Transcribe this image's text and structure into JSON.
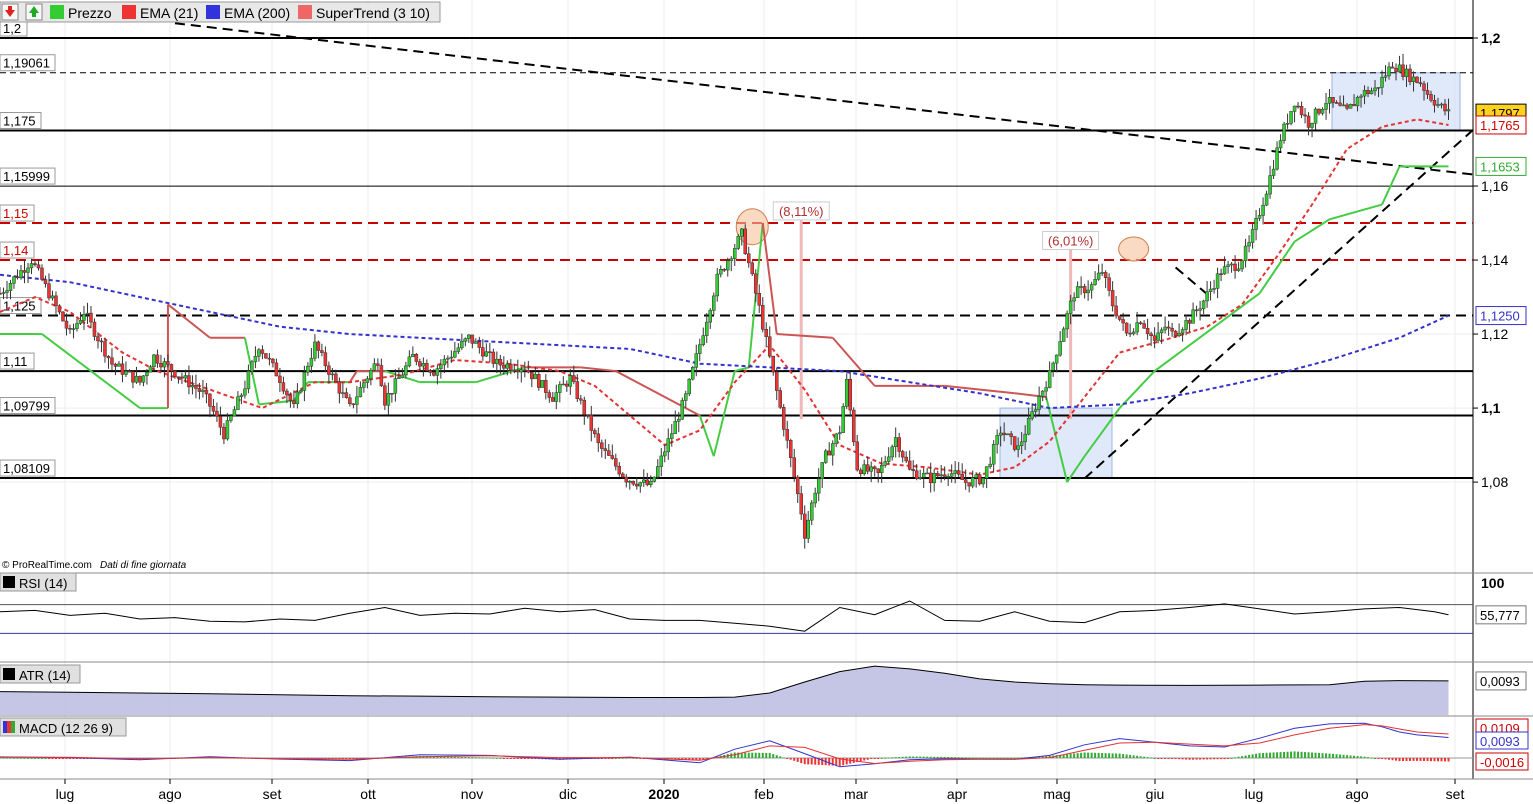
{
  "toolbar": {
    "buttons": [
      {
        "icon": "arrow-down-icon",
        "color": "#d22"
      },
      {
        "icon": "arrow-up-icon",
        "color": "#2a2"
      }
    ],
    "legend": [
      {
        "label": "Prezzo",
        "color": "#3c3"
      },
      {
        "label": "EMA (21)",
        "color": "#e33"
      },
      {
        "label": "EMA (200)",
        "color": "#33d"
      },
      {
        "label": "SuperTrend (3 10)",
        "color": "#e66"
      }
    ]
  },
  "credit": {
    "source": "© ProRealTime.com",
    "note": "Dati di fine giornata"
  },
  "chart_data": [
    {
      "type": "candlestick",
      "title": "",
      "ylim": [
        1.063,
        1.2
      ],
      "x_ticks": [
        "lug",
        "ago",
        "set",
        "ott",
        "nov",
        "dic",
        "2020",
        "feb",
        "mar",
        "apr",
        "mag",
        "giu",
        "lug",
        "ago",
        "set"
      ],
      "y_ticks": [
        {
          "label": "1,2",
          "value": 1.2,
          "bold": true
        },
        {
          "label": "1,16",
          "value": 1.16,
          "bold": false
        },
        {
          "label": "1,14",
          "value": 1.14,
          "bold": false
        },
        {
          "label": "1,12",
          "value": 1.12,
          "bold": false
        },
        {
          "label": "1,1",
          "value": 1.1,
          "bold": true
        },
        {
          "label": "1,08",
          "value": 1.08,
          "bold": false
        }
      ],
      "levels": [
        {
          "label": "1,2",
          "value": 1.2,
          "style": "solid",
          "color": "#000000"
        },
        {
          "label": "1,19061",
          "value": 1.19061,
          "style": "dashed-thin",
          "color": "#000000"
        },
        {
          "label": "1,175",
          "value": 1.175,
          "style": "solid",
          "color": "#000000"
        },
        {
          "label": "1,15999",
          "value": 1.15999,
          "style": "solid-thin",
          "color": "#000000"
        },
        {
          "label": "1,15",
          "value": 1.15,
          "style": "dashed",
          "color": "#cc0000"
        },
        {
          "label": "1,14",
          "value": 1.14,
          "style": "dashed",
          "color": "#cc0000"
        },
        {
          "label": "1,125",
          "value": 1.125,
          "style": "dashed",
          "color": "#000000"
        },
        {
          "label": "1,11",
          "value": 1.11,
          "style": "solid",
          "color": "#000000"
        },
        {
          "label": "1,09799",
          "value": 1.09799,
          "style": "solid",
          "color": "#000000"
        },
        {
          "label": "1,08109",
          "value": 1.08109,
          "style": "solid",
          "color": "#000000"
        }
      ],
      "last_values": [
        {
          "label": "1,1797",
          "value": 1.1797,
          "bg": "#ffd21f",
          "fg": "#000000"
        },
        {
          "label": "1,1765",
          "value": 1.1765,
          "bg": "#ffffff",
          "fg": "#cc0000"
        },
        {
          "label": "1,1653",
          "value": 1.1653,
          "bg": "#ffffff",
          "fg": "#33aa33"
        },
        {
          "label": "1,1250",
          "value": 1.125,
          "bg": "#ffffff",
          "fg": "#3333cc"
        }
      ],
      "annotations": [
        {
          "text": "(8,11%)",
          "x": 229,
          "y": 1.153
        },
        {
          "text": "(6,01%)",
          "x": 306,
          "y": 1.145
        }
      ],
      "series": [
        {
          "name": "Prezzo",
          "kind": "close",
          "x": [
            0,
            9,
            14,
            20,
            24,
            32,
            40,
            44,
            58,
            61,
            64,
            70,
            74,
            80,
            84,
            88,
            90,
            100,
            104,
            108,
            110,
            118,
            124,
            134,
            142,
            150,
            158,
            163,
            171,
            179,
            186,
            196,
            205,
            212,
            217,
            223,
            229,
            230,
            233,
            236,
            240,
            242,
            245,
            251,
            256,
            260,
            266,
            271,
            276,
            281,
            286,
            291,
            294,
            297,
            300,
            304,
            307,
            312,
            315,
            318,
            322,
            326,
            330,
            333,
            335,
            340,
            344,
            349,
            354,
            357,
            362,
            366,
            370,
            374,
            379,
            385,
            389,
            393,
            398,
            404,
            406,
            408,
            411,
            414
          ],
          "y": [
            1.131,
            1.14,
            1.131,
            1.12,
            1.126,
            1.112,
            1.107,
            1.114,
            1.104,
            1.099,
            1.093,
            1.106,
            1.117,
            1.108,
            1.1,
            1.112,
            1.117,
            1.1,
            1.107,
            1.113,
            1.102,
            1.114,
            1.11,
            1.119,
            1.112,
            1.111,
            1.103,
            1.108,
            1.09,
            1.081,
            1.079,
            1.103,
            1.135,
            1.147,
            1.127,
            1.1,
            1.072,
            1.066,
            1.078,
            1.087,
            1.094,
            1.107,
            1.084,
            1.082,
            1.092,
            1.083,
            1.081,
            1.083,
            1.08,
            1.081,
            1.094,
            1.089,
            1.096,
            1.103,
            1.109,
            1.122,
            1.131,
            1.133,
            1.137,
            1.128,
            1.12,
            1.124,
            1.118,
            1.122,
            1.12,
            1.124,
            1.129,
            1.137,
            1.139,
            1.144,
            1.159,
            1.173,
            1.183,
            1.177,
            1.183,
            1.18,
            1.185,
            1.186,
            1.193,
            1.189,
            1.188,
            1.185,
            1.182,
            1.1797
          ]
        },
        {
          "name": "EMA (21)",
          "kind": "line",
          "color": "#e33333",
          "style": "dashed",
          "x": [
            0,
            10,
            20,
            35,
            45,
            60,
            75,
            90,
            100,
            115,
            130,
            145,
            160,
            170,
            180,
            190,
            200,
            210,
            220,
            230,
            240,
            252,
            265,
            280,
            290,
            300,
            310,
            320,
            335,
            345,
            355,
            365,
            375,
            385,
            395,
            405,
            414
          ],
          "y": [
            1.126,
            1.13,
            1.126,
            1.115,
            1.11,
            1.105,
            1.1,
            1.107,
            1.107,
            1.109,
            1.113,
            1.112,
            1.11,
            1.106,
            1.098,
            1.09,
            1.094,
            1.107,
            1.117,
            1.105,
            1.09,
            1.085,
            1.084,
            1.082,
            1.084,
            1.091,
            1.103,
            1.115,
            1.119,
            1.122,
            1.128,
            1.141,
            1.155,
            1.17,
            1.176,
            1.178,
            1.1765
          ]
        },
        {
          "name": "EMA (200)",
          "kind": "line",
          "color": "#3333cc",
          "style": "dashed",
          "x": [
            0,
            20,
            40,
            60,
            80,
            100,
            120,
            140,
            160,
            180,
            200,
            220,
            240,
            260,
            280,
            300,
            320,
            340,
            360,
            380,
            400,
            414
          ],
          "y": [
            1.136,
            1.134,
            1.13,
            1.126,
            1.122,
            1.12,
            1.119,
            1.118,
            1.117,
            1.116,
            1.112,
            1.111,
            1.11,
            1.107,
            1.104,
            1.1,
            1.101,
            1.104,
            1.108,
            1.113,
            1.119,
            1.125
          ]
        },
        {
          "name": "SuperTrend (3 10)",
          "kind": "step",
          "color_up": "#44cc44",
          "color_down": "#cc5555",
          "x": [
            0,
            10,
            12,
            40,
            48,
            48,
            60,
            70,
            74,
            84,
            88,
            100,
            102,
            110,
            120,
            136,
            150,
            166,
            176,
            200,
            204,
            210,
            214,
            218,
            222,
            238,
            250,
            270,
            290,
            299,
            305,
            310,
            320,
            330,
            360,
            370,
            380,
            395,
            400,
            414
          ],
          "y": [
            1.12,
            1.12,
            1.12,
            1.1,
            1.1,
            1.128,
            1.119,
            1.119,
            1.101,
            1.102,
            1.107,
            1.107,
            1.11,
            1.11,
            1.107,
            1.107,
            1.111,
            1.111,
            1.11,
            1.098,
            1.087,
            1.11,
            1.111,
            1.15,
            1.12,
            1.119,
            1.106,
            1.106,
            1.104,
            1.103,
            1.08,
            1.087,
            1.1,
            1.11,
            1.131,
            1.145,
            1.151,
            1.155,
            1.1653,
            1.1653
          ]
        }
      ],
      "trendlines": [
        {
          "from_x": 50,
          "from_y": 1.204,
          "to_x": 422,
          "to_y": 1.163
        },
        {
          "from_x": 310,
          "from_y": 1.081,
          "to_x": 422,
          "to_y": 1.176
        },
        {
          "from_x": 336,
          "from_y": 1.138,
          "to_x": 346,
          "to_y": 1.13
        }
      ]
    },
    {
      "type": "line",
      "title": "RSI (14)",
      "ylim": [
        0,
        100
      ],
      "y_ticks": [
        {
          "label": "100",
          "value": 100
        }
      ],
      "levels": [
        70,
        30
      ],
      "last_value": {
        "label": "55,777",
        "value": 55.777
      },
      "series": [
        {
          "name": "RSI (14)",
          "color": "#000000",
          "x": [
            0,
            10,
            20,
            30,
            40,
            50,
            60,
            70,
            80,
            90,
            100,
            110,
            120,
            130,
            140,
            150,
            160,
            170,
            180,
            190,
            200,
            210,
            220,
            230,
            240,
            250,
            260,
            270,
            280,
            290,
            300,
            310,
            320,
            330,
            340,
            350,
            360,
            370,
            380,
            390,
            400,
            410,
            414
          ],
          "y": [
            60,
            62,
            55,
            58,
            50,
            52,
            47,
            46,
            50,
            48,
            58,
            66,
            55,
            58,
            57,
            65,
            60,
            63,
            50,
            48,
            48,
            44,
            40,
            33,
            66,
            56,
            75,
            48,
            47,
            60,
            47,
            45,
            60,
            62,
            66,
            71,
            64,
            57,
            60,
            64,
            66,
            60,
            55.777
          ]
        }
      ]
    },
    {
      "type": "area",
      "title": "ATR (14)",
      "last_value": {
        "label": "0,0093",
        "value": 0.0093
      },
      "series": [
        {
          "name": "ATR (14)",
          "color": "#000000",
          "x": [
            0,
            20,
            40,
            60,
            80,
            100,
            120,
            140,
            160,
            180,
            200,
            210,
            220,
            230,
            240,
            250,
            260,
            270,
            280,
            290,
            300,
            310,
            320,
            340,
            360,
            380,
            390,
            400,
            414
          ],
          "y": [
            0.0062,
            0.006,
            0.0058,
            0.0056,
            0.0053,
            0.005,
            0.0049,
            0.0047,
            0.0046,
            0.0045,
            0.0045,
            0.0046,
            0.0058,
            0.009,
            0.012,
            0.0136,
            0.0128,
            0.0115,
            0.0099,
            0.009,
            0.0085,
            0.0082,
            0.0081,
            0.008,
            0.0081,
            0.0082,
            0.0092,
            0.0094,
            0.0093
          ]
        }
      ]
    },
    {
      "type": "line",
      "title": "MACD (12 26 9)",
      "last_values": [
        {
          "label": "0,0109",
          "value": 0.0109,
          "color": "#cc0000"
        },
        {
          "label": "0,0093",
          "value": 0.0093,
          "color": "#3333cc"
        },
        {
          "label": "-0,0016",
          "value": -0.0016,
          "color": "#cc0000"
        }
      ],
      "series": [
        {
          "name": "MACD",
          "color": "#3333cc",
          "x": [
            0,
            20,
            40,
            60,
            80,
            100,
            120,
            140,
            160,
            180,
            200,
            210,
            220,
            230,
            240,
            250,
            260,
            270,
            280,
            290,
            300,
            310,
            320,
            330,
            340,
            350,
            360,
            370,
            380,
            390,
            395,
            400,
            405,
            414
          ],
          "y": [
            0.0005,
            0.0002,
            -0.0008,
            0.0006,
            -0.0005,
            -0.0012,
            0.0015,
            0.0012,
            -0.0006,
            0.0004,
            -0.0022,
            0.004,
            0.0078,
            0.002,
            -0.004,
            -0.0026,
            -0.0008,
            -0.0003,
            -0.0005,
            -0.0006,
            0.0012,
            0.006,
            0.0088,
            0.0072,
            0.0055,
            0.005,
            0.009,
            0.0135,
            0.0155,
            0.0158,
            0.0142,
            0.0118,
            0.0105,
            0.0093
          ]
        },
        {
          "name": "Signal",
          "color": "#e33333",
          "x": [
            0,
            20,
            40,
            60,
            80,
            100,
            120,
            140,
            160,
            180,
            200,
            210,
            220,
            230,
            240,
            250,
            260,
            270,
            280,
            290,
            300,
            310,
            320,
            330,
            340,
            350,
            360,
            370,
            380,
            390,
            395,
            400,
            405,
            414
          ],
          "y": [
            0.0003,
            0.0003,
            -0.0004,
            0.0002,
            -0.0003,
            -0.0006,
            0.0006,
            0.001,
            0.0002,
            0.0002,
            -0.001,
            0.0015,
            0.0055,
            0.0048,
            -0.0004,
            -0.0025,
            -0.0015,
            -0.0008,
            -0.0006,
            -0.0006,
            0.0002,
            0.0035,
            0.0068,
            0.0072,
            0.0063,
            0.0055,
            0.0068,
            0.0105,
            0.0135,
            0.0152,
            0.0146,
            0.0132,
            0.0118,
            0.0109
          ]
        }
      ]
    }
  ]
}
